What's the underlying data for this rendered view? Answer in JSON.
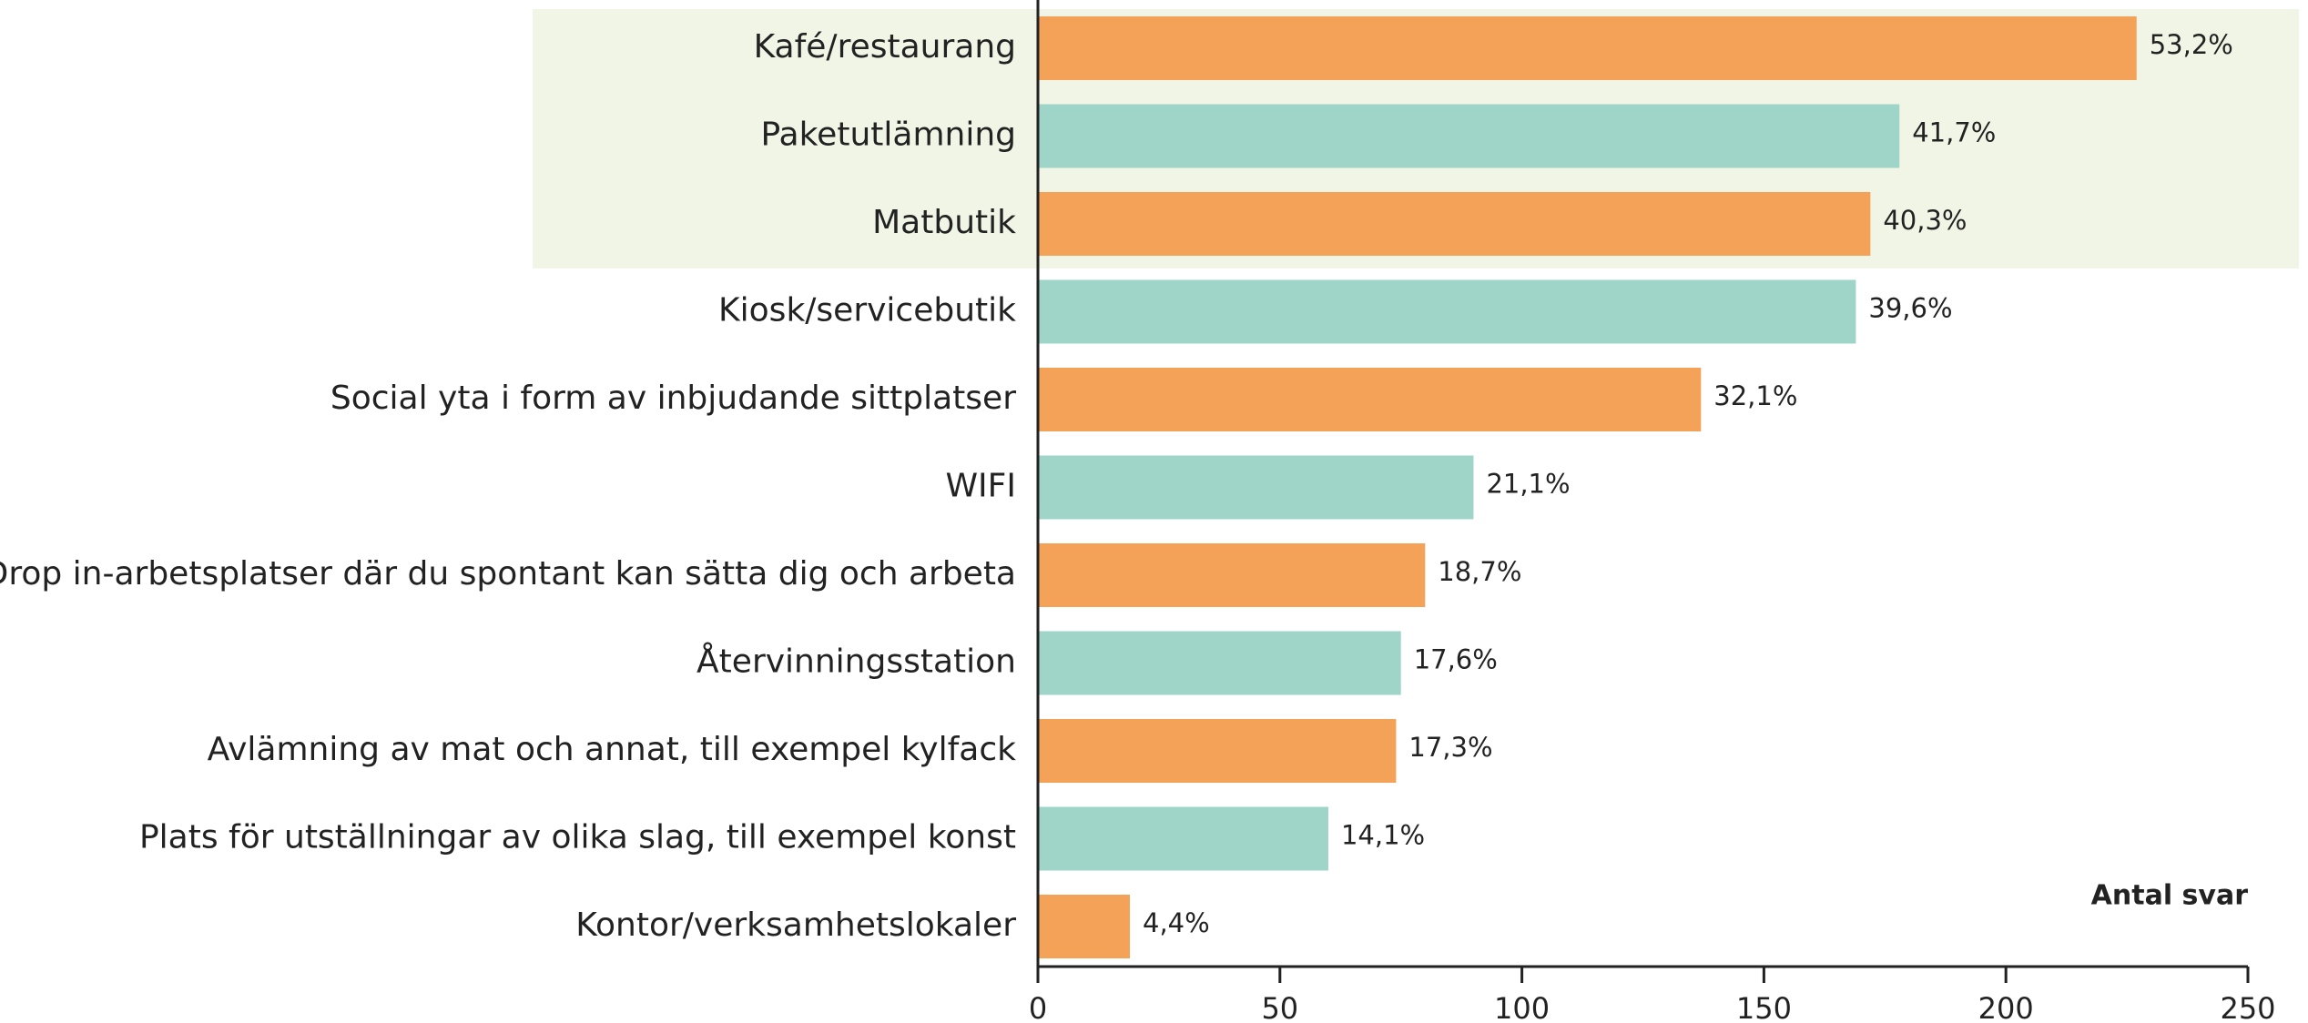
{
  "chart_data": {
    "type": "bar",
    "orientation": "horizontal",
    "x_label": "Antal svar",
    "categories": [
      "Kafé/restaurang",
      "Paketutlämning",
      "Matbutik",
      "Kiosk/servicebutik",
      "Social yta i form av inbjudande sittplatser",
      "WIFI",
      "Drop in-arbetsplatser där du spontant kan sätta dig och arbeta",
      "Återvinningsstation",
      "Avlämning av mat och annat, till exempel kylfack",
      "Plats för utställningar av olika slag, till exempel konst",
      "Kontor/verksamhetslokaler"
    ],
    "values": [
      227,
      178,
      172,
      169,
      137,
      90,
      80,
      75,
      74,
      60,
      19
    ],
    "value_labels": [
      "53,2%",
      "41,7%",
      "40,3%",
      "39,6%",
      "32,1%",
      "21,1%",
      "18,7%",
      "17,6%",
      "17,3%",
      "14,1%",
      "4,4%"
    ],
    "colors": [
      "#f4a257",
      "#9fd4c8",
      "#f4a257",
      "#9fd4c8",
      "#f4a257",
      "#9fd4c8",
      "#f4a257",
      "#9fd4c8",
      "#f4a257",
      "#9fd4c8",
      "#f4a257"
    ],
    "xlim": [
      0,
      250
    ],
    "xticks": [
      0,
      50,
      100,
      150,
      200,
      250
    ]
  }
}
